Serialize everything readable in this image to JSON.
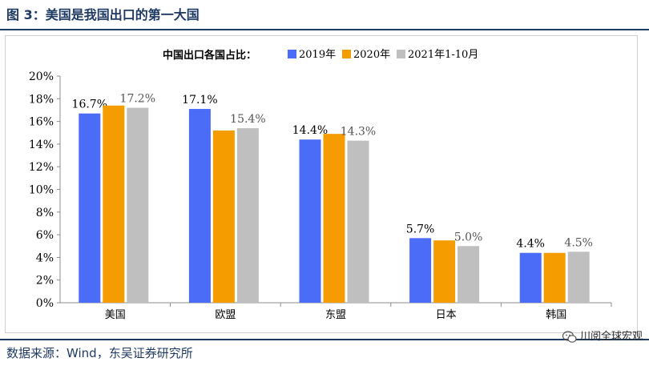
{
  "figure_title": "图 3：美国是我国出口的第一大国",
  "source_text": "数据来源：Wind，东吴证券研究所",
  "watermark_text": "川阅全球宏观",
  "chart_data": {
    "type": "bar",
    "title": "中国出口各国占比：",
    "categories": [
      "美国",
      "欧盟",
      "东盟",
      "日本",
      "韩国"
    ],
    "series": [
      {
        "name": "2019年",
        "color": "#4a6cf7",
        "values": [
          16.7,
          17.1,
          14.4,
          5.7,
          4.4
        ],
        "labels": [
          "16.7%",
          "17.1%",
          "14.4%",
          "5.7%",
          "4.4%"
        ]
      },
      {
        "name": "2020年",
        "color": "#f59c00",
        "values": [
          17.4,
          15.2,
          14.9,
          5.5,
          4.4
        ],
        "labels": [
          "",
          "",
          "",
          "",
          ""
        ]
      },
      {
        "name": "2021年1-10月",
        "color": "#bfbfbf",
        "values": [
          17.2,
          15.4,
          14.3,
          5.0,
          4.5
        ],
        "labels": [
          "17.2%",
          "15.4%",
          "14.3%",
          "5.0%",
          "4.5%"
        ]
      }
    ],
    "ylim": [
      0,
      20
    ],
    "yticks": [
      "0%",
      "2%",
      "4%",
      "6%",
      "8%",
      "10%",
      "12%",
      "14%",
      "16%",
      "18%",
      "20%"
    ],
    "legend_position": "top",
    "grid": false
  }
}
